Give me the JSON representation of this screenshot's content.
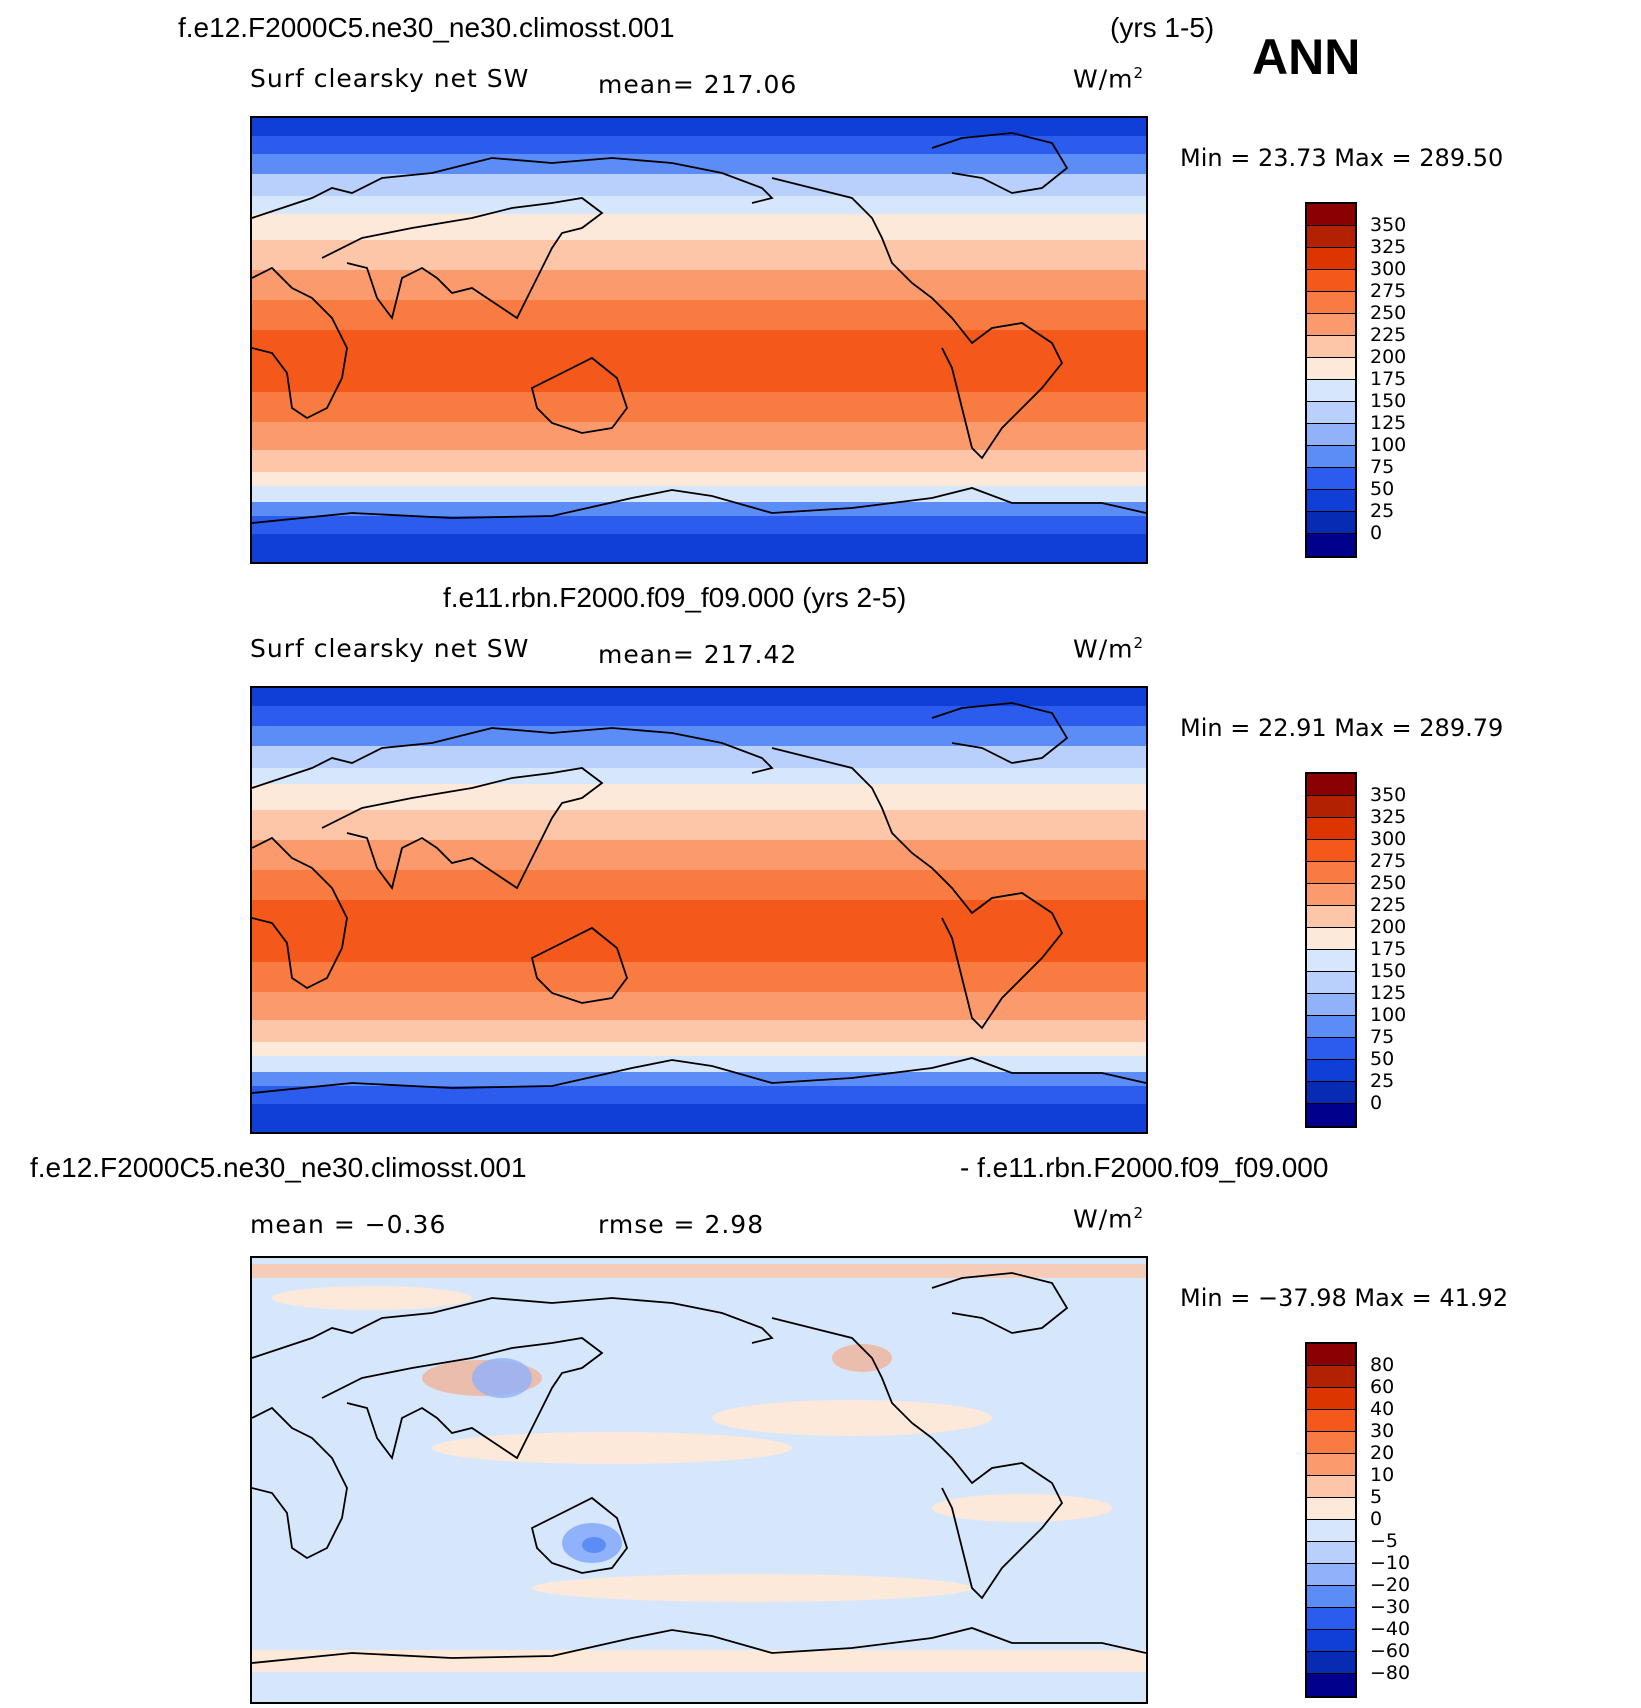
{
  "season": "ANN",
  "panel1": {
    "case": "f.e12.F2000C5.ne30_ne30.climosst.001",
    "years": "(yrs 1-5)",
    "variable": "Surf clearsky net SW",
    "mean_text": "mean= 217.06",
    "units_base": "W/m",
    "units_exp": "2",
    "minmax_text": "Min =   23.73 Max = 289.50",
    "levels": [
      "350",
      "325",
      "300",
      "275",
      "250",
      "225",
      "200",
      "175",
      "150",
      "125",
      "100",
      "75",
      "50",
      "25",
      "0"
    ]
  },
  "panel2": {
    "case_years": "f.e11.rbn.F2000.f09_f09.000 (yrs 2-5)",
    "variable": "Surf clearsky net SW",
    "mean_text": "mean= 217.42",
    "units_base": "W/m",
    "units_exp": "2",
    "minmax_text": "Min =   22.91 Max = 289.79",
    "levels": [
      "350",
      "325",
      "300",
      "275",
      "250",
      "225",
      "200",
      "175",
      "150",
      "125",
      "100",
      "75",
      "50",
      "25",
      "0"
    ]
  },
  "panel3": {
    "case_left": "f.e12.F2000C5.ne30_ne30.climosst.001",
    "case_right": "- f.e11.rbn.F2000.f09_f09.000",
    "mean_text": "mean =   −0.36",
    "rmse_text": "rmse =    2.98",
    "units_base": "W/m",
    "units_exp": "2",
    "minmax_text": "Min = −37.98 Max =   41.92",
    "levels": [
      "80",
      "60",
      "40",
      "30",
      "20",
      "10",
      "5",
      "0",
      "−5",
      "−10",
      "−20",
      "−30",
      "−40",
      "−60",
      "−80"
    ]
  },
  "colors": {
    "colorbar": [
      "#8b0000",
      "#b22200",
      "#dc3500",
      "#f4581a",
      "#f87b42",
      "#fb9b6d",
      "#fdc6a8",
      "#fde9da",
      "#d7e7fb",
      "#b8d0fb",
      "#8fb2fa",
      "#5c8cf5",
      "#2c5cee",
      "#0f3fd6",
      "#072cb3",
      "#00008c"
    ]
  }
}
